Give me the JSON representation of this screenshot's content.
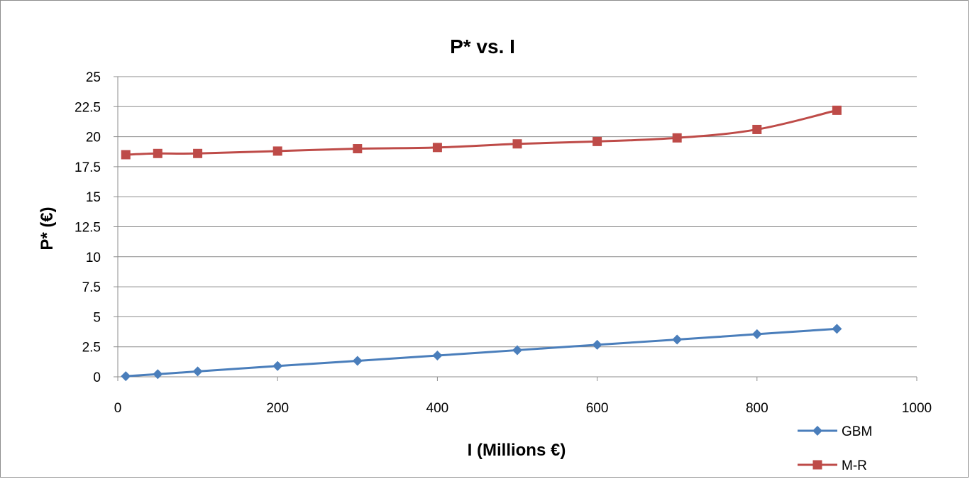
{
  "chart_data": {
    "type": "line",
    "title": "P* vs. I",
    "xlabel": "I (Millions €)",
    "ylabel": "P*  (€)",
    "xlim": [
      0,
      1000
    ],
    "ylim": [
      0,
      25
    ],
    "x_ticks": [
      "0",
      "200",
      "400",
      "600",
      "800",
      "1000"
    ],
    "y_ticks": [
      "0",
      "2.5",
      "5",
      "7.5",
      "10",
      "12.5",
      "15",
      "17.5",
      "20",
      "22.5",
      "25"
    ],
    "grid": "horizontal",
    "legend_position": "bottom-right",
    "series": [
      {
        "name": "GBM",
        "color": "#4a7ebb",
        "marker": "diamond",
        "x": [
          10,
          50,
          100,
          200,
          300,
          400,
          500,
          600,
          700,
          800,
          900
        ],
        "y": [
          0.05,
          0.22,
          0.45,
          0.9,
          1.33,
          1.77,
          2.22,
          2.67,
          3.1,
          3.55,
          4.0
        ]
      },
      {
        "name": "M-R",
        "color": "#be4b48",
        "marker": "square",
        "x": [
          10,
          50,
          100,
          200,
          300,
          400,
          500,
          600,
          700,
          800,
          900
        ],
        "y": [
          18.5,
          18.6,
          18.6,
          18.8,
          19.0,
          19.1,
          19.4,
          19.6,
          19.9,
          20.6,
          22.2
        ]
      }
    ]
  }
}
